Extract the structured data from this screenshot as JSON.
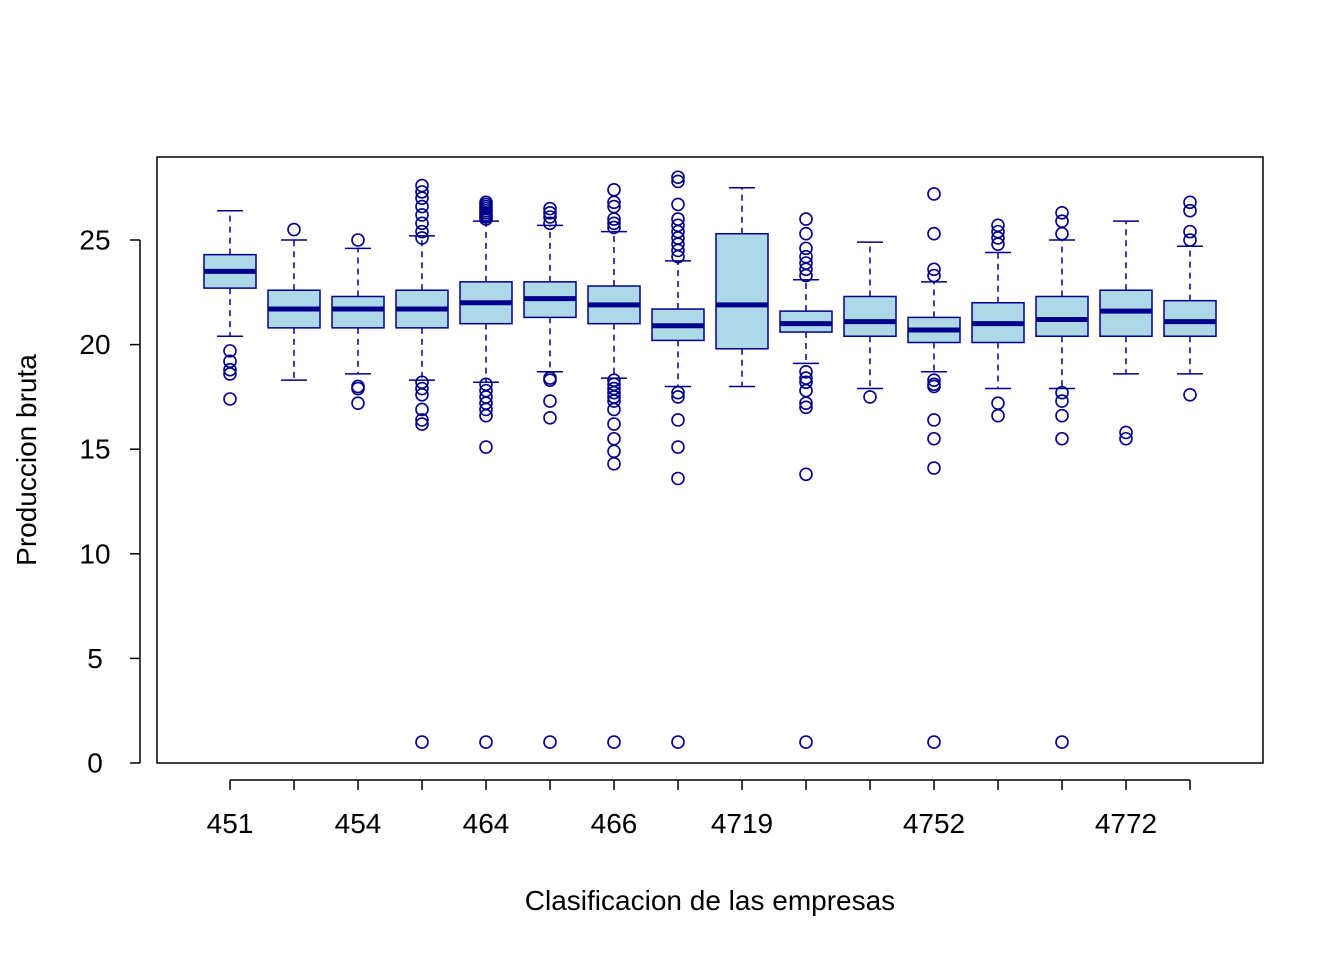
{
  "chart_data": {
    "type": "boxplot",
    "title": "",
    "xlabel": "Clasificacion de las empresas",
    "ylabel": "Produccion bruta",
    "ylim": [
      0,
      29
    ],
    "yticks": [
      0,
      5,
      10,
      15,
      20,
      25
    ],
    "grid": false,
    "legend": "none",
    "x_tick_labels": [
      {
        "index": 0,
        "label": "451"
      },
      {
        "index": 2,
        "label": "454"
      },
      {
        "index": 4,
        "label": "464"
      },
      {
        "index": 6,
        "label": "466"
      },
      {
        "index": 8,
        "label": "4719"
      },
      {
        "index": 11,
        "label": "4752"
      },
      {
        "index": 14,
        "label": "4772"
      }
    ],
    "box_fill": "#add8e6",
    "box_stroke": "#00008b",
    "boxes": [
      {
        "label": "451",
        "whislo": 20.4,
        "q1": 22.7,
        "med": 23.5,
        "q3": 24.3,
        "whishi": 26.4,
        "outliers": [
          19.7,
          19.2,
          18.8,
          18.6,
          17.4
        ]
      },
      {
        "label": "",
        "whislo": 18.3,
        "q1": 20.8,
        "med": 21.7,
        "q3": 22.6,
        "whishi": 25.0,
        "outliers": [
          25.5
        ]
      },
      {
        "label": "454",
        "whislo": 18.6,
        "q1": 20.8,
        "med": 21.7,
        "q3": 22.3,
        "whishi": 24.6,
        "outliers": [
          25.0,
          18.0,
          17.9,
          17.2
        ]
      },
      {
        "label": "",
        "whislo": 18.3,
        "q1": 20.8,
        "med": 21.7,
        "q3": 22.6,
        "whishi": 25.2,
        "outliers": [
          27.6,
          27.3,
          27.0,
          26.6,
          26.2,
          25.8,
          25.4,
          25.1,
          18.2,
          17.9,
          17.6,
          16.9,
          16.4,
          16.2,
          1.0
        ]
      },
      {
        "label": "464",
        "whislo": 18.2,
        "q1": 21.0,
        "med": 22.0,
        "q3": 23.0,
        "whishi": 25.9,
        "outliers": [
          26.8,
          26.7,
          26.6,
          26.5,
          26.4,
          26.3,
          26.2,
          26.1,
          26.0,
          18.1,
          17.8,
          17.5,
          17.2,
          16.9,
          16.6,
          15.1,
          1.0
        ]
      },
      {
        "label": "",
        "whislo": 18.7,
        "q1": 21.3,
        "med": 22.2,
        "q3": 23.0,
        "whishi": 25.7,
        "outliers": [
          26.5,
          26.3,
          26.1,
          25.8,
          18.4,
          18.3,
          17.3,
          16.5,
          1.0
        ]
      },
      {
        "label": "466",
        "whislo": 18.4,
        "q1": 21.0,
        "med": 21.9,
        "q3": 22.8,
        "whishi": 25.4,
        "outliers": [
          27.4,
          26.8,
          26.6,
          26.0,
          25.8,
          25.6,
          18.3,
          18.1,
          17.9,
          17.7,
          17.5,
          17.3,
          16.9,
          16.2,
          15.5,
          14.9,
          14.3,
          1.0
        ]
      },
      {
        "label": "",
        "whislo": 18.0,
        "q1": 20.2,
        "med": 20.9,
        "q3": 21.7,
        "whishi": 24.0,
        "outliers": [
          28.0,
          27.8,
          26.7,
          26.0,
          25.7,
          25.4,
          25.1,
          24.8,
          24.5,
          24.2,
          17.7,
          17.5,
          16.4,
          15.1,
          13.6,
          1.0
        ]
      },
      {
        "label": "4719",
        "whislo": 18.0,
        "q1": 19.8,
        "med": 21.9,
        "q3": 25.3,
        "whishi": 27.5,
        "outliers": []
      },
      {
        "label": "",
        "whislo": 19.1,
        "q1": 20.6,
        "med": 21.0,
        "q3": 21.6,
        "whishi": 23.1,
        "outliers": [
          26.0,
          25.3,
          24.6,
          24.2,
          23.9,
          23.6,
          23.3,
          18.7,
          18.4,
          18.2,
          17.8,
          17.2,
          17.0,
          13.8,
          1.0
        ]
      },
      {
        "label": "",
        "whislo": 17.9,
        "q1": 20.4,
        "med": 21.1,
        "q3": 22.3,
        "whishi": 24.9,
        "outliers": [
          17.5
        ]
      },
      {
        "label": "4752",
        "whislo": 18.7,
        "q1": 20.1,
        "med": 20.7,
        "q3": 21.3,
        "whishi": 23.0,
        "outliers": [
          27.2,
          25.3,
          23.6,
          23.3,
          18.3,
          18.1,
          18.0,
          16.4,
          15.5,
          14.1,
          1.0
        ]
      },
      {
        "label": "",
        "whislo": 17.9,
        "q1": 20.1,
        "med": 21.0,
        "q3": 22.0,
        "whishi": 24.4,
        "outliers": [
          25.7,
          25.4,
          25.1,
          24.8,
          17.2,
          16.6
        ]
      },
      {
        "label": "",
        "whislo": 17.9,
        "q1": 20.4,
        "med": 21.2,
        "q3": 22.3,
        "whishi": 25.0,
        "outliers": [
          26.3,
          25.9,
          25.3,
          17.7,
          17.3,
          16.6,
          15.5,
          1.0
        ]
      },
      {
        "label": "4772",
        "whislo": 18.6,
        "q1": 20.4,
        "med": 21.6,
        "q3": 22.6,
        "whishi": 25.9,
        "outliers": [
          15.8,
          15.5
        ]
      },
      {
        "label": "",
        "whislo": 18.6,
        "q1": 20.4,
        "med": 21.1,
        "q3": 22.1,
        "whishi": 24.7,
        "outliers": [
          26.8,
          26.4,
          25.4,
          25.0,
          17.6
        ]
      }
    ]
  }
}
